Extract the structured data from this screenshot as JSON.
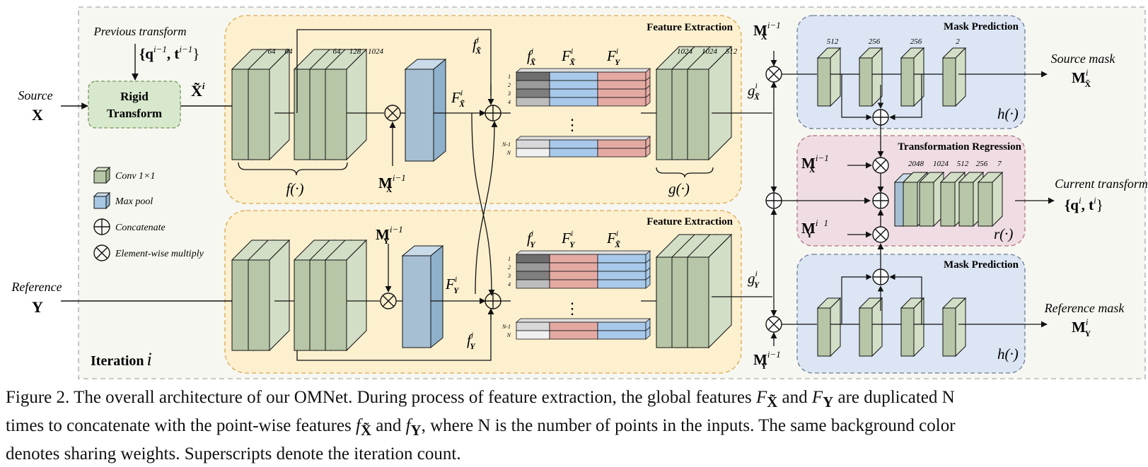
{
  "colors": {
    "outer_bg": "#f7f7f2",
    "feature_bg": "#fdf0cf",
    "mask_bg": "#dbe5f3",
    "regression_bg": "#efdde3",
    "rigid_bg": "#d8e8cc",
    "conv_face": "#b7c6a7",
    "conv_side": "#d3dec6",
    "pool_face": "#a7bfd3",
    "global_blue": "#a8c9ea",
    "global_red": "#e4aaa2"
  },
  "figure": {
    "source_label": "Source",
    "source_var": "X",
    "reference_label": "Reference",
    "reference_var": "Y",
    "previous_transform": "Previous transform",
    "prev_q": "{q",
    "prev_q_sup": "i−1",
    "prev_t": ", t",
    "prev_t_sup": "i−1",
    "prev_close": "}",
    "rigid_line1": "Rigid",
    "rigid_line2": "Transform",
    "xtilde": "X̃",
    "xtilde_sup": "i",
    "iteration_label": "Iteration",
    "iteration_var": "i",
    "feature_title_top": "Feature Extraction",
    "feature_title_bottom": "Feature Extraction",
    "mask_title_top": "Mask Prediction",
    "mask_title_bottom": "Mask Prediction",
    "regression_title": "Transformation Regression",
    "f_func": "f(·)",
    "g_func": "g(·)",
    "h_func_top": "h(·)",
    "h_func_bottom": "h(·)",
    "r_func": "r(·)",
    "dims_f1": [
      "64",
      "64"
    ],
    "dims_f2": [
      "64",
      "128",
      "1024"
    ],
    "dims_g": [
      "1024",
      "1024",
      "512"
    ],
    "dims_h": [
      "512",
      "256",
      "256",
      "2"
    ],
    "dims_r": [
      "2048",
      "1024",
      "512",
      "256",
      "7"
    ],
    "row_labels": [
      "1",
      "2",
      "3",
      "4"
    ],
    "row_labels_end": [
      "N-1",
      "N"
    ],
    "dots": "⋮",
    "source_mask": "Source mask",
    "reference_mask": "Reference mask",
    "current_transform": "Current  transform",
    "cur_q": "{q",
    "cur_q_sup": "i",
    "cur_t": ", t",
    "cur_t_sup": "i",
    "cur_close": "}",
    "legend": [
      {
        "icon": "conv-icon",
        "label": "Conv 1×1"
      },
      {
        "icon": "maxpool-icon",
        "label": "Max pool"
      },
      {
        "icon": "concatenate-icon",
        "label": "Concatenate"
      },
      {
        "icon": "multiply-icon",
        "label": "Element-wise multiply"
      }
    ],
    "sym_M": "M",
    "sym_F": "F",
    "sym_f": "f",
    "sym_g": "g",
    "sub_X": "X̃",
    "sub_Y": "Y",
    "sup_i": "i",
    "sup_im1": "i−1",
    "sup_1": "1"
  },
  "caption": {
    "text": "Figure 2. The overall architecture of our OMNet. During process of feature extraction, the global features Fₓ̃ and Fᵧ are duplicated N times to concatenate with the point-wise features fₓ̃ and fᵧ, where N is the number of points in the inputs. The same background color denotes sharing weights. Superscripts denote the iteration count.",
    "line1": "Figure 2. The overall architecture of our OMNet. During process of feature extraction, the global features ",
    "line1_F": "F",
    "line1_sub1": "X̃",
    "line1_and": " and ",
    "line1_F2": "F",
    "line1_sub2": "Y",
    "line1_end": " are duplicated N",
    "line2_start": "times to concatenate with the point-wise features ",
    "line2_f": "f",
    "line2_sub1": "X̃",
    "line2_and": " and ",
    "line2_f2": "f",
    "line2_sub2": "Y",
    "line2_end": ", where N is the number of points in the inputs. The same background color",
    "line3": "denotes sharing weights. Superscripts denote the iteration count."
  }
}
